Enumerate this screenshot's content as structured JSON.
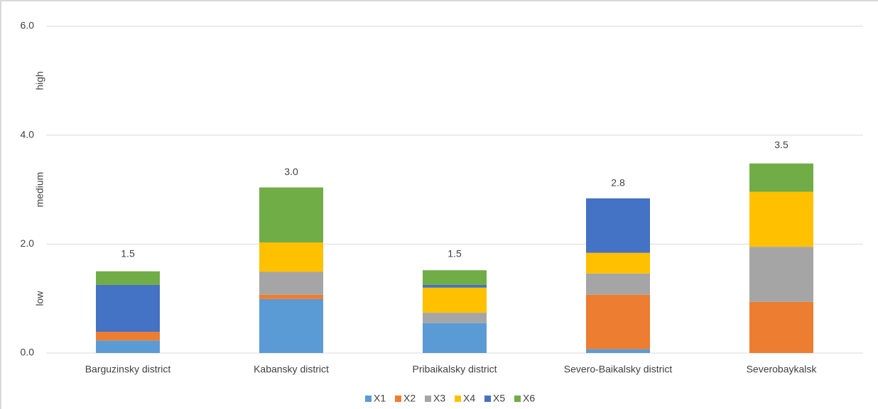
{
  "chart_data": {
    "type": "stacked_bar",
    "categories": [
      "Barguzinsky district",
      "Kabansky district",
      "Pribaikalsky district",
      "Severo-Baikalsky district",
      "Severobaykalsk"
    ],
    "series": [
      {
        "name": "X1",
        "color": "#5b9bd5",
        "values": [
          0.23,
          0.99,
          0.55,
          0.07,
          0
        ]
      },
      {
        "name": "X2",
        "color": "#ed7d31",
        "values": [
          0.16,
          0.08,
          0,
          1.0,
          0.94
        ]
      },
      {
        "name": "X3",
        "color": "#a5a5a5",
        "values": [
          0,
          0.42,
          0.19,
          0.39,
          1.01
        ]
      },
      {
        "name": "X4",
        "color": "#ffc000",
        "values": [
          0,
          0.54,
          0.46,
          0.38,
          1.01
        ]
      },
      {
        "name": "X5",
        "color": "#4472c4",
        "values": [
          0.86,
          0,
          0.05,
          1.0,
          0
        ]
      },
      {
        "name": "X6",
        "color": "#70ad47",
        "values": [
          0.25,
          1.01,
          0.27,
          0,
          0.52
        ]
      }
    ],
    "totals": [
      1.5,
      3,
      1.5,
      2.8,
      3.5
    ],
    "total_labels": [
      "1.5",
      "3.0",
      "1.5",
      "2.8",
      "3.5"
    ],
    "ylim": [
      0,
      6
    ],
    "yticks": [
      {
        "value": 0,
        "label": "0.0"
      },
      {
        "value": 2,
        "label": "2.0"
      },
      {
        "value": 4,
        "label": "4.0"
      },
      {
        "value": 6,
        "label": "6.0"
      }
    ],
    "y_annotations": [
      {
        "text": "low",
        "value": 1
      },
      {
        "text": "medium",
        "value": 3
      },
      {
        "text": "high",
        "value": 5
      }
    ],
    "grid": true,
    "legend": "bottom"
  }
}
